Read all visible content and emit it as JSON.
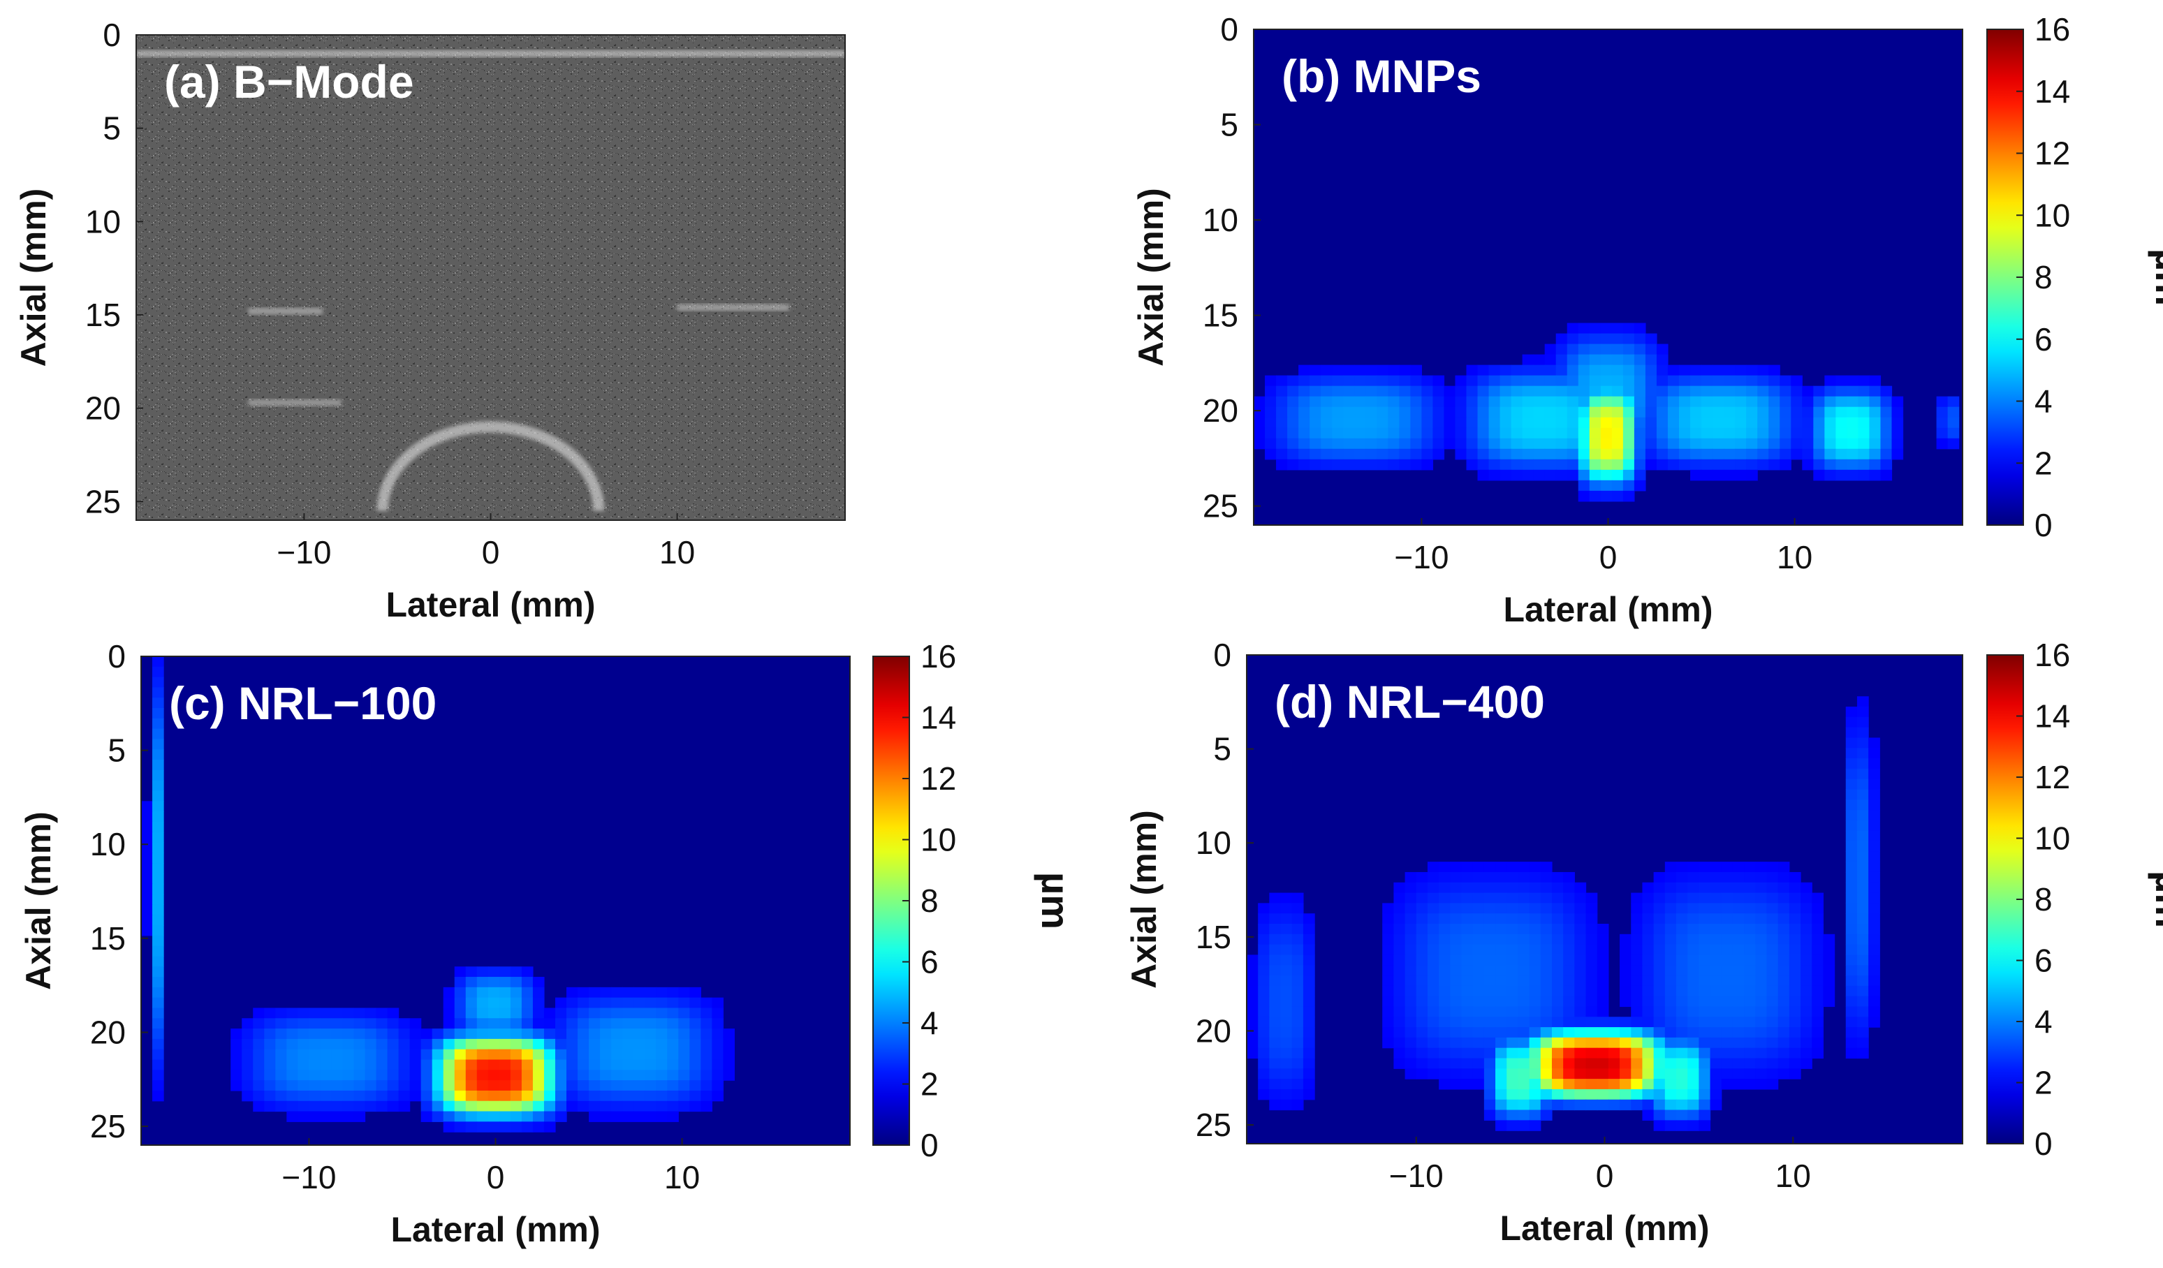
{
  "figure": {
    "colormap": "jet",
    "colors": {
      "background": "#ffffff",
      "plot_background": "#00008f",
      "title_text": "#ffffff",
      "axis_text": "#111111"
    }
  },
  "chart_data": [
    {
      "id": "a",
      "type": "heatmap",
      "style": "grayscale",
      "title": "(a) B−Mode",
      "xlabel": "Lateral (mm)",
      "ylabel": "Axial (mm)",
      "xlim": [
        -19,
        19
      ],
      "ylim": [
        0,
        26
      ],
      "xticks": [
        -10,
        0,
        10
      ],
      "yticks": [
        0,
        5,
        10,
        15,
        20,
        25
      ],
      "colorbar": null,
      "features": [
        {
          "shape": "arc",
          "label": "bright inclusion boundary",
          "x": 0,
          "y": 24,
          "rx": 5.8,
          "ry": 4.5,
          "brightness": 0.8
        },
        {
          "shape": "band",
          "label": "short reflector",
          "x0": -13,
          "x1": -9,
          "y": 14.8,
          "brightness": 0.6
        },
        {
          "shape": "band",
          "label": "short reflector",
          "x0": 10,
          "x1": 16,
          "y": 14.6,
          "brightness": 0.6
        },
        {
          "shape": "band",
          "label": "short reflector",
          "x0": -13,
          "x1": -8,
          "y": 19.7,
          "brightness": 0.55
        },
        {
          "shape": "band",
          "label": "top surface",
          "x0": -19,
          "x1": 19,
          "y": 1.0,
          "brightness": 0.75
        }
      ]
    },
    {
      "id": "b",
      "type": "heatmap",
      "style": "jet",
      "title": "(b) MNPs",
      "xlabel": "Lateral (mm)",
      "ylabel": "Axial (mm)",
      "xlim": [
        -19,
        19
      ],
      "ylim": [
        0,
        26
      ],
      "xticks": [
        -10,
        0,
        10
      ],
      "yticks": [
        0,
        5,
        10,
        15,
        20,
        25
      ],
      "colorbar": {
        "min": 0,
        "max": 16,
        "ticks": [
          0,
          2,
          4,
          6,
          8,
          10,
          12,
          14,
          16
        ],
        "unit": "µm"
      },
      "blobs": [
        {
          "x": -13.5,
          "y": 20.5,
          "sx": 4.2,
          "sy": 2.2,
          "value": 3.2
        },
        {
          "x": -3.5,
          "y": 20.5,
          "sx": 3.8,
          "sy": 2.4,
          "value": 4.2
        },
        {
          "x": 6.0,
          "y": 20.5,
          "sx": 3.8,
          "sy": 2.2,
          "value": 4.0
        },
        {
          "x": 0,
          "y": 21.3,
          "sx": 1.5,
          "sy": 2.4,
          "value": 9.5
        },
        {
          "x": 0,
          "y": 19.0,
          "sx": 2.6,
          "sy": 2.8,
          "value": 3.5
        },
        {
          "x": 13.0,
          "y": 21.0,
          "sx": 2.0,
          "sy": 2.0,
          "value": 5.0
        },
        {
          "x": 18.3,
          "y": 20.5,
          "sx": 0.5,
          "sy": 1.2,
          "value": 2.0
        }
      ]
    },
    {
      "id": "c",
      "type": "heatmap",
      "style": "jet",
      "title": "(c) NRL−100",
      "xlabel": "Lateral (mm)",
      "ylabel": "Axial (mm)",
      "xlim": [
        -19,
        19
      ],
      "ylim": [
        0,
        26
      ],
      "xticks": [
        -10,
        0,
        10
      ],
      "yticks": [
        0,
        5,
        10,
        15,
        20,
        25
      ],
      "colorbar": {
        "min": 0,
        "max": 16,
        "ticks": [
          0,
          2,
          4,
          6,
          8,
          10,
          12,
          14,
          16
        ],
        "unit": "µm"
      },
      "blobs": [
        {
          "x": 0,
          "y": 22.3,
          "sx": 3.0,
          "sy": 2.0,
          "value": 13.5
        },
        {
          "x": -9.0,
          "y": 21.5,
          "sx": 4.2,
          "sy": 2.4,
          "value": 2.8
        },
        {
          "x": 7.5,
          "y": 21.0,
          "sx": 4.0,
          "sy": 2.8,
          "value": 3.0
        },
        {
          "x": 0,
          "y": 18.5,
          "sx": 2.0,
          "sy": 1.6,
          "value": 3.5
        },
        {
          "x": -18.3,
          "y": 11.5,
          "sx": 0.3,
          "sy": 9.5,
          "value": 4.5
        }
      ]
    },
    {
      "id": "d",
      "type": "heatmap",
      "style": "jet",
      "title": "(d) NRL−400",
      "xlabel": "Lateral (mm)",
      "ylabel": "Axial (mm)",
      "xlim": [
        -19,
        19
      ],
      "ylim": [
        0,
        26
      ],
      "xticks": [
        -10,
        0,
        10
      ],
      "yticks": [
        0,
        5,
        10,
        15,
        20,
        25
      ],
      "colorbar": {
        "min": 0,
        "max": 16,
        "ticks": [
          0,
          2,
          4,
          6,
          8,
          10,
          12,
          14,
          16
        ],
        "unit": "µm"
      },
      "blobs": [
        {
          "x": -0.5,
          "y": 21.8,
          "sx": 3.4,
          "sy": 1.7,
          "value": 14.5
        },
        {
          "x": -4.5,
          "y": 22.5,
          "sx": 1.5,
          "sy": 2.0,
          "value": 6.0
        },
        {
          "x": 4.0,
          "y": 22.5,
          "sx": 1.5,
          "sy": 2.0,
          "value": 5.5
        },
        {
          "x": -6.0,
          "y": 17.0,
          "sx": 5.0,
          "sy": 5.0,
          "value": 2.2
        },
        {
          "x": 6.5,
          "y": 17.0,
          "sx": 4.5,
          "sy": 5.0,
          "value": 2.2
        },
        {
          "x": -17.0,
          "y": 18.5,
          "sx": 1.5,
          "sy": 5.0,
          "value": 1.8
        },
        {
          "x": 13.5,
          "y": 12.0,
          "sx": 0.8,
          "sy": 8.0,
          "value": 2.2
        }
      ]
    }
  ]
}
